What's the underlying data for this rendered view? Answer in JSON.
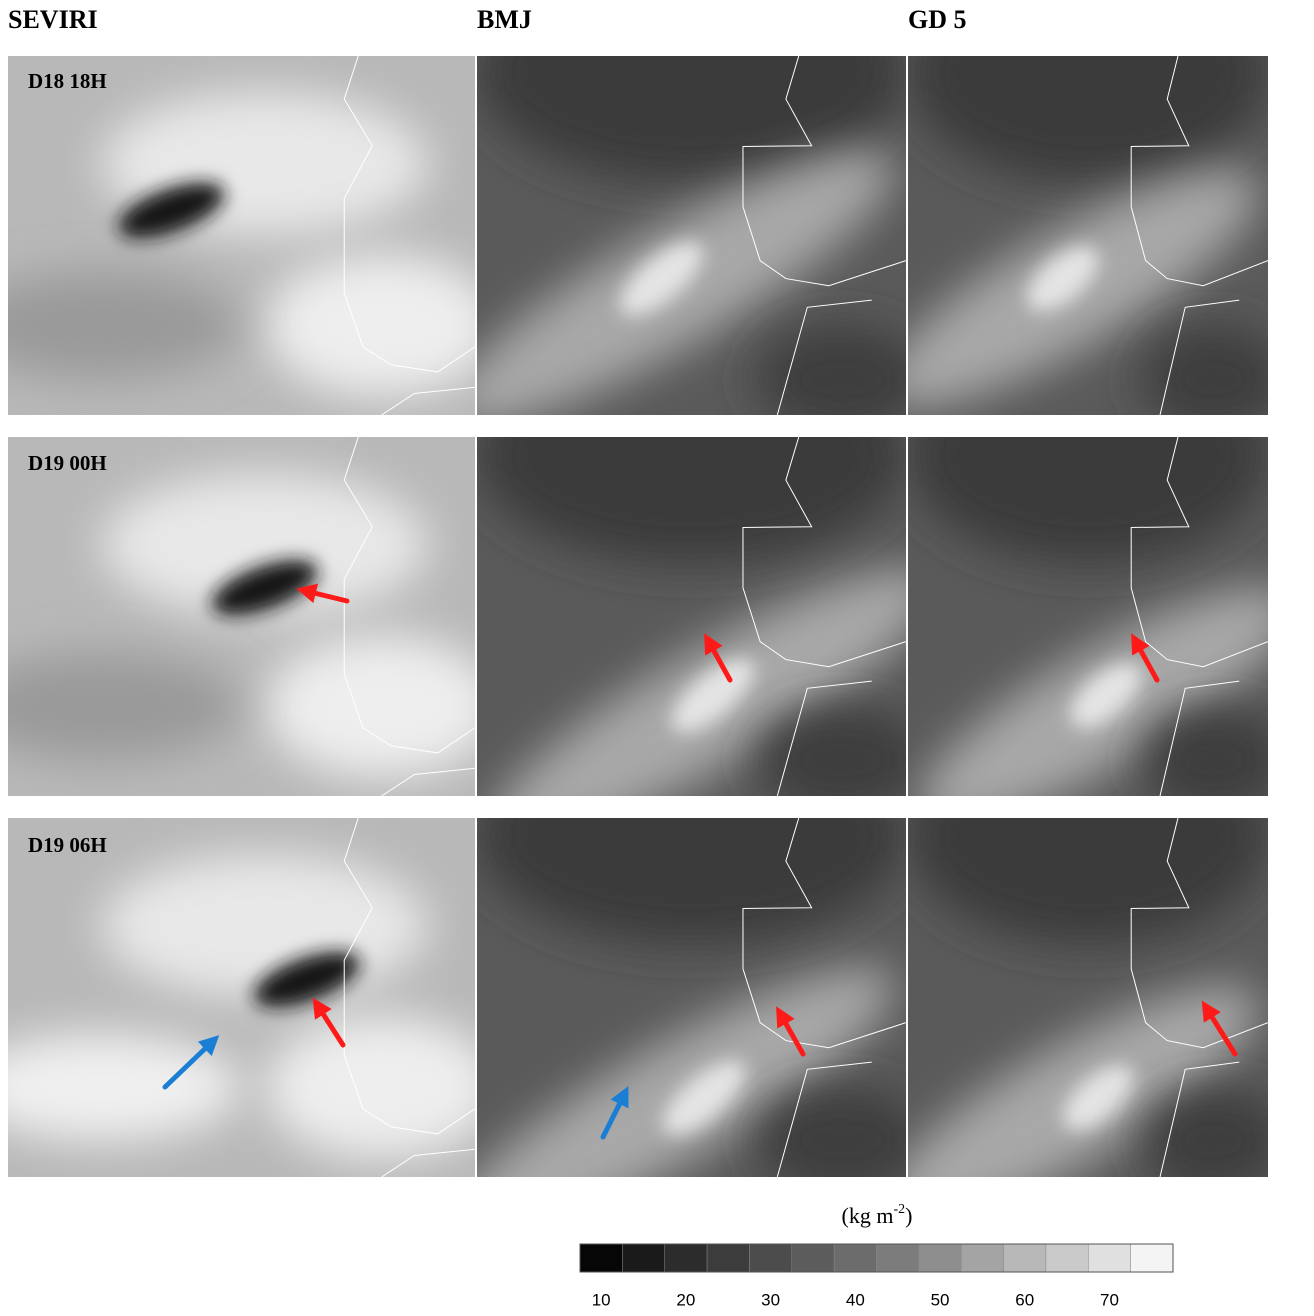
{
  "columns": [
    "SEVIRI",
    "BMJ",
    "GD 5"
  ],
  "rows": [
    "D18 18H",
    "D19 00H",
    "D19 06H"
  ],
  "colorbar": {
    "unit_prefix": "(kg m",
    "unit_exponent": "-2",
    "unit_suffix": ")",
    "lim": [
      7.5,
      77.5
    ],
    "ticks": [
      10,
      20,
      30,
      40,
      50,
      60,
      70
    ],
    "colors": [
      "#060606",
      "#1a1a1a",
      "#2c2c2c",
      "#3c3c3c",
      "#4c4c4c",
      "#5c5c5c",
      "#6c6c6c",
      "#7c7c7c",
      "#8e8e8e",
      "#a4a4a4",
      "#b8b8b8",
      "#cacaca",
      "#e0e0e0",
      "#f4f4f4"
    ]
  }
}
